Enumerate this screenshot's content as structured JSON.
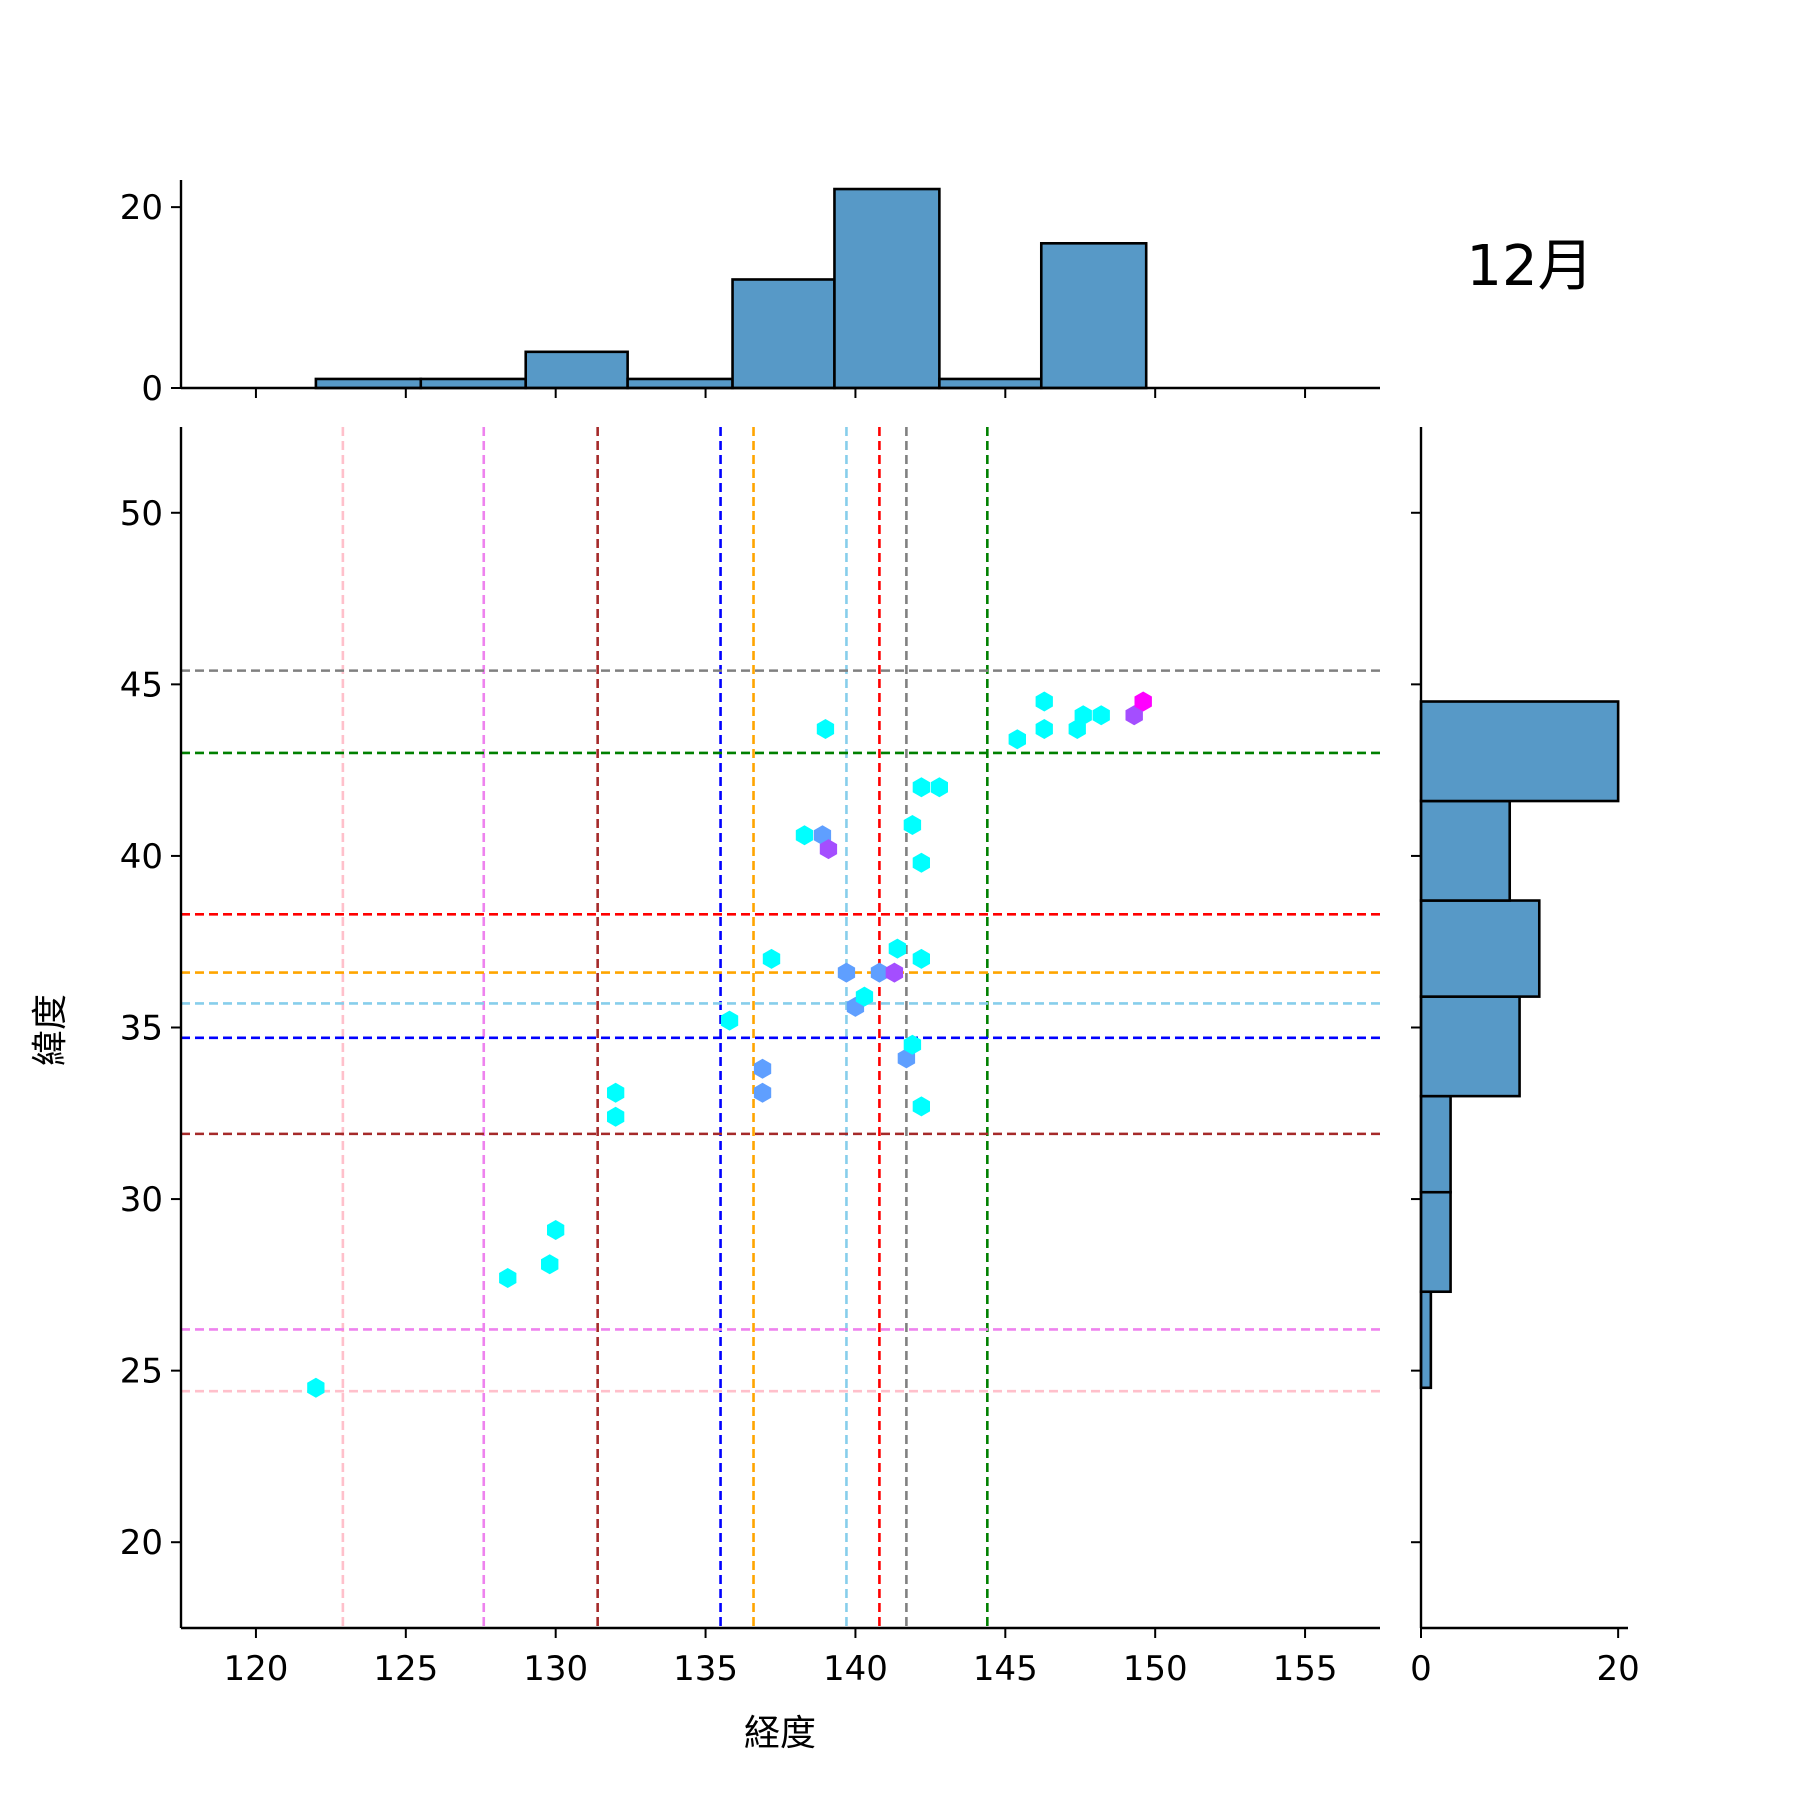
{
  "chart_data": {
    "type": "scatter",
    "subtype": "jointplot-hexbin",
    "title": "",
    "annotation": "12月",
    "xlabel": "経度",
    "ylabel": "緯度",
    "xlim": [
      117.5,
      157.5
    ],
    "ylim": [
      17.5,
      52.5
    ],
    "xticks": [
      120,
      125,
      130,
      135,
      140,
      145,
      150,
      155
    ],
    "yticks": [
      20,
      25,
      30,
      35,
      40,
      45,
      50
    ],
    "grid": false,
    "points": [
      {
        "x": 122.0,
        "y": 24.5,
        "color": "#00ffff"
      },
      {
        "x": 128.4,
        "y": 27.7,
        "color": "#00ffff"
      },
      {
        "x": 129.8,
        "y": 28.1,
        "color": "#00ffff"
      },
      {
        "x": 130.0,
        "y": 29.1,
        "color": "#00ffff"
      },
      {
        "x": 132.0,
        "y": 33.1,
        "color": "#00ffff"
      },
      {
        "x": 132.0,
        "y": 32.4,
        "color": "#00ffff"
      },
      {
        "x": 135.8,
        "y": 35.2,
        "color": "#00ffff"
      },
      {
        "x": 136.9,
        "y": 33.8,
        "color": "#5f9fff"
      },
      {
        "x": 136.9,
        "y": 33.1,
        "color": "#5f9fff"
      },
      {
        "x": 137.2,
        "y": 37.0,
        "color": "#00ffff"
      },
      {
        "x": 138.3,
        "y": 40.6,
        "color": "#00ffff"
      },
      {
        "x": 138.9,
        "y": 40.6,
        "color": "#5f9fff"
      },
      {
        "x": 139.1,
        "y": 40.2,
        "color": "#a44eff"
      },
      {
        "x": 139.0,
        "y": 43.7,
        "color": "#00ffff"
      },
      {
        "x": 139.7,
        "y": 36.6,
        "color": "#5f9fff"
      },
      {
        "x": 140.0,
        "y": 35.6,
        "color": "#5f9fff"
      },
      {
        "x": 140.3,
        "y": 35.9,
        "color": "#00ffff"
      },
      {
        "x": 140.8,
        "y": 36.6,
        "color": "#5f9fff"
      },
      {
        "x": 141.3,
        "y": 36.6,
        "color": "#a44eff"
      },
      {
        "x": 141.4,
        "y": 37.3,
        "color": "#00ffff"
      },
      {
        "x": 141.7,
        "y": 34.1,
        "color": "#5f9fff"
      },
      {
        "x": 141.9,
        "y": 40.9,
        "color": "#00ffff"
      },
      {
        "x": 141.9,
        "y": 34.5,
        "color": "#00ffff"
      },
      {
        "x": 142.2,
        "y": 42.0,
        "color": "#00ffff"
      },
      {
        "x": 142.2,
        "y": 39.8,
        "color": "#00ffff"
      },
      {
        "x": 142.2,
        "y": 37.0,
        "color": "#00ffff"
      },
      {
        "x": 142.2,
        "y": 32.7,
        "color": "#00ffff"
      },
      {
        "x": 142.8,
        "y": 42.0,
        "color": "#00ffff"
      },
      {
        "x": 145.4,
        "y": 43.4,
        "color": "#00ffff"
      },
      {
        "x": 146.3,
        "y": 44.5,
        "color": "#00ffff"
      },
      {
        "x": 146.3,
        "y": 43.7,
        "color": "#00ffff"
      },
      {
        "x": 147.4,
        "y": 43.7,
        "color": "#00ffff"
      },
      {
        "x": 147.6,
        "y": 44.1,
        "color": "#00ffff"
      },
      {
        "x": 148.2,
        "y": 44.1,
        "color": "#00ffff"
      },
      {
        "x": 149.3,
        "y": 44.1,
        "color": "#a44eff"
      },
      {
        "x": 149.6,
        "y": 44.5,
        "color": "#ff00ff"
      }
    ],
    "reference_lines": {
      "vertical": [
        {
          "x": 122.9,
          "color": "#ffc0cb"
        },
        {
          "x": 127.6,
          "color": "#ee82ee"
        },
        {
          "x": 131.4,
          "color": "#a52a2a"
        },
        {
          "x": 135.5,
          "color": "#0000ff"
        },
        {
          "x": 136.6,
          "color": "#ffa500"
        },
        {
          "x": 139.7,
          "color": "#87ceeb"
        },
        {
          "x": 140.8,
          "color": "#ff0000"
        },
        {
          "x": 141.7,
          "color": "#808080"
        },
        {
          "x": 144.4,
          "color": "#008000"
        }
      ],
      "horizontal": [
        {
          "y": 45.4,
          "color": "#808080"
        },
        {
          "y": 43.0,
          "color": "#008000"
        },
        {
          "y": 38.3,
          "color": "#ff0000"
        },
        {
          "y": 36.6,
          "color": "#ffa500"
        },
        {
          "y": 35.7,
          "color": "#87ceeb"
        },
        {
          "y": 34.7,
          "color": "#0000ff"
        },
        {
          "y": 31.9,
          "color": "#a52a2a"
        },
        {
          "y": 26.2,
          "color": "#ee82ee"
        },
        {
          "y": 24.4,
          "color": "#ffc0cb"
        }
      ]
    },
    "marginal_x": {
      "bins": [
        [
          122.0,
          125.5
        ],
        [
          125.5,
          129.0
        ],
        [
          129.0,
          132.4
        ],
        [
          132.4,
          135.9
        ],
        [
          135.9,
          139.3
        ],
        [
          139.3,
          142.8
        ],
        [
          142.8,
          146.2
        ],
        [
          146.2,
          149.7
        ]
      ],
      "counts": [
        1,
        1,
        4,
        1,
        12,
        22,
        1,
        16
      ],
      "ylim": [
        0,
        23
      ],
      "yticks": [
        0,
        20
      ]
    },
    "marginal_y": {
      "bins": [
        [
          24.5,
          27.3
        ],
        [
          27.3,
          30.2
        ],
        [
          30.2,
          33.0
        ],
        [
          33.0,
          35.9
        ],
        [
          35.9,
          38.7
        ],
        [
          38.7,
          41.6
        ],
        [
          41.6,
          44.5
        ]
      ],
      "counts": [
        1,
        3,
        3,
        10,
        12,
        9,
        20
      ],
      "xlim": [
        0,
        21
      ],
      "xticks": [
        0,
        20
      ]
    },
    "bar_color": "#5799c7"
  }
}
